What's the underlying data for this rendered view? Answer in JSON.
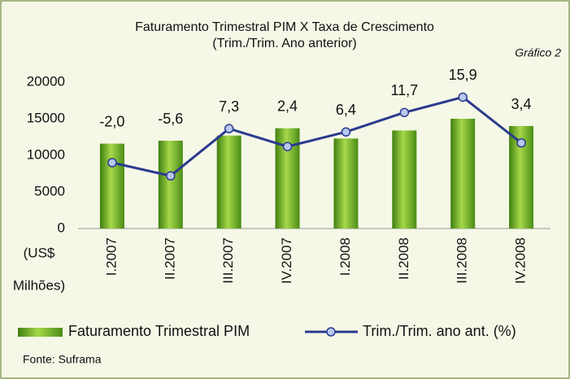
{
  "chart_data": {
    "type": "bar",
    "title": "Faturamento Trimestral PIM X Taxa de Crescimento",
    "subtitle": "(Trim./Trim. Ano anterior)",
    "annotation": "Gráfico 2",
    "y_label": [
      "(US$",
      "Milhões)"
    ],
    "source": "Fonte: Suframa",
    "categories": [
      "I.2007",
      "II.2007",
      "III.2007",
      "IV.2007",
      "I.2008",
      "II.2008",
      "III.2008",
      "IV.2008"
    ],
    "ylim": [
      0,
      20000
    ],
    "yticks": [
      0,
      5000,
      10000,
      15000,
      20000
    ],
    "y2lim": [
      -20,
      20
    ],
    "grid": false,
    "legend": "bottom",
    "series": [
      {
        "name": "Faturamento Trimestral PIM",
        "type": "bar",
        "color": "#6aae2a",
        "values": [
          11600,
          12000,
          12700,
          13700,
          12300,
          13400,
          15000,
          14000
        ]
      },
      {
        "name": "Trim./Trim. ano ant. (%)",
        "type": "line",
        "axis": "y2",
        "color": "#2b3a8f",
        "values": [
          -2.0,
          -5.6,
          7.3,
          2.4,
          6.4,
          11.7,
          15.9,
          3.4
        ],
        "value_labels": [
          "-2,0",
          "-5,6",
          "7,3",
          "2,4",
          "6,4",
          "11,7",
          "15,9",
          "3,4"
        ]
      }
    ]
  }
}
